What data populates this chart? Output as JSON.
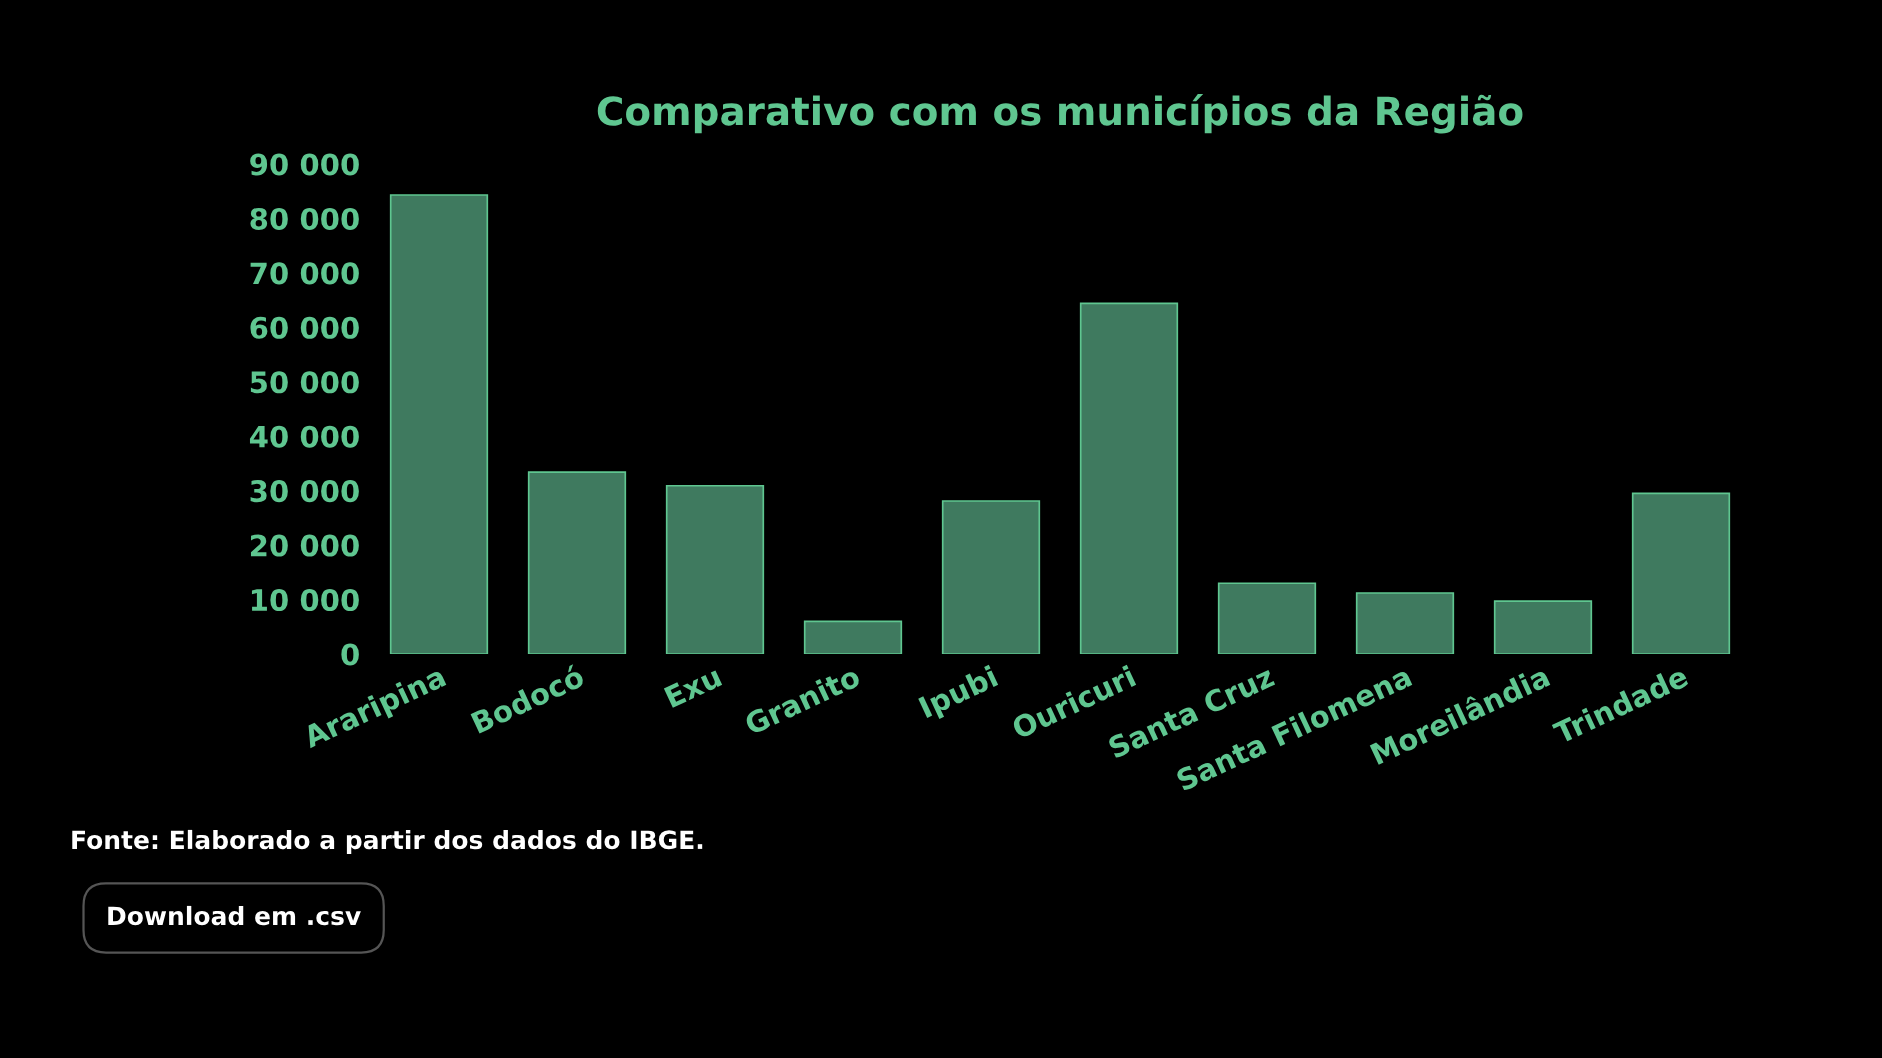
{
  "chart_data": {
    "type": "bar",
    "title": "Comparativo com os municípios da Região",
    "categories": [
      "Araripina",
      "Bodocó",
      "Exu",
      "Granito",
      "Ipubi",
      "Ouricuri",
      "Santa Cruz",
      "Santa Filomena",
      "Moreilândia",
      "Trindade"
    ],
    "values": [
      84300,
      33400,
      30900,
      6000,
      28100,
      64400,
      13000,
      11200,
      9700,
      29500
    ],
    "color": "#3f7a5f",
    "ylim": [
      0,
      90000
    ],
    "yticks": [
      {
        "value": 0,
        "label": "0"
      },
      {
        "value": 10000,
        "label": "10 000"
      },
      {
        "value": 20000,
        "label": "20 000"
      },
      {
        "value": 30000,
        "label": "30 000"
      },
      {
        "value": 40000,
        "label": "40 000"
      },
      {
        "value": 50000,
        "label": "50 000"
      },
      {
        "value": 60000,
        "label": "60 000"
      },
      {
        "value": 70000,
        "label": "70 000"
      },
      {
        "value": 80000,
        "label": "80 000"
      },
      {
        "value": 90000,
        "label": "90 000"
      }
    ],
    "grid": false,
    "legend": false,
    "annotations": [
      "Fonte: Elaborado a partir dos dados do IBGE.",
      "Download em .csv"
    ]
  }
}
